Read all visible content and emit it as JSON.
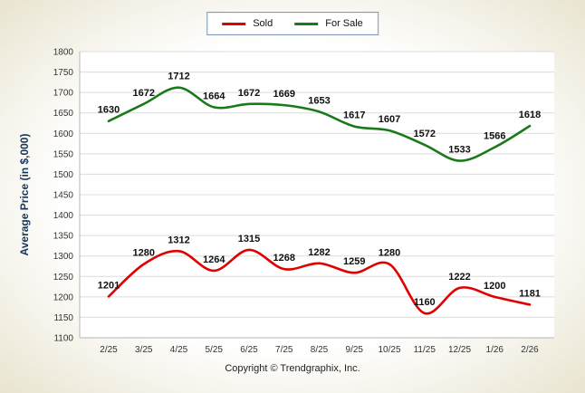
{
  "chart_data": {
    "type": "line",
    "categories": [
      "2/25",
      "3/25",
      "4/25",
      "5/25",
      "6/25",
      "7/25",
      "8/25",
      "9/25",
      "10/25",
      "11/25",
      "12/25",
      "1/26",
      "2/26"
    ],
    "series": [
      {
        "name": "Sold",
        "color": "#e00000",
        "values": [
          1201,
          1280,
          1312,
          1264,
          1315,
          1268,
          1282,
          1259,
          1280,
          1160,
          1222,
          1200,
          1181
        ]
      },
      {
        "name": "For Sale",
        "color": "#1a7a1a",
        "values": [
          1630,
          1672,
          1712,
          1664,
          1672,
          1669,
          1653,
          1617,
          1607,
          1572,
          1533,
          1566,
          1618
        ]
      }
    ],
    "ylabel": "Average Price (in $,000)",
    "ylim": [
      1100,
      1800
    ],
    "ytick_step": 50,
    "grid": true,
    "legend_position": "top"
  },
  "footer": {
    "copyright": "Copyright © Trendgraphix, Inc."
  }
}
